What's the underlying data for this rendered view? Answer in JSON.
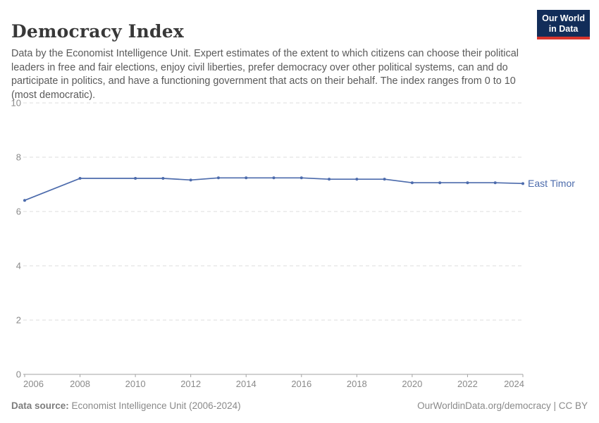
{
  "header": {
    "title": "Democracy Index",
    "subtitle": "Data by the Economist Intelligence Unit. Expert estimates of the extent to which citizens can choose their political leaders in free and fair elections, enjoy civil liberties, prefer democracy over other political systems, can and do participate in politics, and have a functioning government that acts on their behalf. The index ranges from 0 to 10 (most democratic)."
  },
  "logo": {
    "line1": "Our World",
    "line2": "in Data",
    "bg_color": "#122d59",
    "accent_color": "#d8352c"
  },
  "chart_data": {
    "type": "line",
    "title": "Democracy Index",
    "xlabel": "",
    "ylabel": "",
    "xlim": [
      2006,
      2024
    ],
    "ylim": [
      0,
      10
    ],
    "yticks": [
      0,
      2,
      4,
      6,
      8,
      10
    ],
    "xticks": [
      2006,
      2008,
      2010,
      2012,
      2014,
      2016,
      2018,
      2020,
      2022,
      2024
    ],
    "grid": "horizontal-dashed",
    "legend_position": "end-of-line-label",
    "series": [
      {
        "name": "East Timor",
        "color": "#4c6bac",
        "x": [
          2006,
          2008,
          2010,
          2011,
          2012,
          2013,
          2014,
          2015,
          2016,
          2017,
          2018,
          2019,
          2020,
          2021,
          2022,
          2023,
          2024
        ],
        "values": [
          6.41,
          7.22,
          7.22,
          7.22,
          7.16,
          7.24,
          7.24,
          7.24,
          7.24,
          7.19,
          7.19,
          7.19,
          7.06,
          7.06,
          7.06,
          7.06,
          7.03
        ]
      }
    ],
    "colors": {
      "gridline": "#dcdcdc",
      "axis": "#a3a3a3",
      "tick_label": "#8a8a8a"
    }
  },
  "footer": {
    "source_label": "Data source:",
    "source_text": "Economist Intelligence Unit (2006-2024)",
    "credit_text": "OurWorldinData.org/democracy | CC BY"
  }
}
